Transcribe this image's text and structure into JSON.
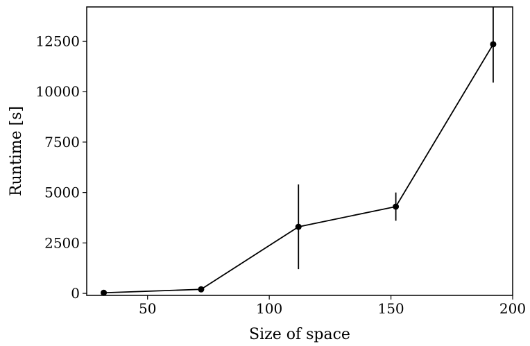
{
  "chart_data": {
    "type": "line",
    "title": "",
    "xlabel": "Size of space",
    "ylabel": "Runtime [s]",
    "xlim": [
      25,
      200
    ],
    "ylim": [
      -100,
      14200
    ],
    "xticks": [
      50,
      100,
      150,
      200
    ],
    "yticks": [
      0,
      2500,
      5000,
      7500,
      10000,
      12500
    ],
    "grid": false,
    "legend": "none",
    "series": [
      {
        "x": [
          32,
          72,
          112,
          152,
          192
        ],
        "y": [
          30,
          200,
          3300,
          4300,
          12350
        ],
        "yerr_low": [
          30,
          200,
          1200,
          3600,
          10450
        ],
        "yerr_high": [
          30,
          200,
          5400,
          5000,
          14200
        ],
        "color": "#000000"
      }
    ]
  }
}
